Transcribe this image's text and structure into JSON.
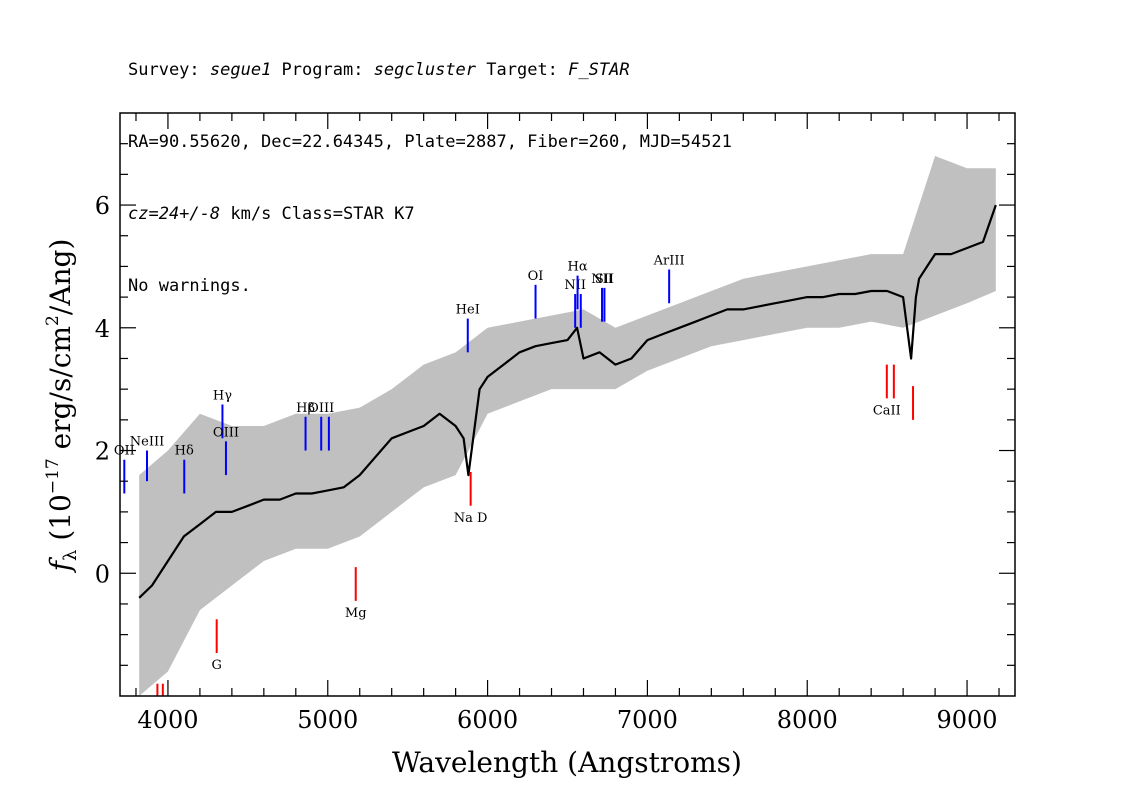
{
  "header": {
    "line1": {
      "survey_label": "Survey: ",
      "survey": "segue1",
      "program_label": " Program: ",
      "program": "segcluster",
      "target_label": " Target: ",
      "target": "F_STAR"
    },
    "line2": "RA=90.55620, Dec=22.64345, Plate=2887, Fiber=260, MJD=54521",
    "line3": {
      "cz": "cz=24+/-8",
      "rest": " km/s Class=STAR K7"
    },
    "line4": "No warnings."
  },
  "chart_data": {
    "type": "line",
    "title": "",
    "xlabel": "Wavelength (Angstroms)",
    "ylabel": "f_λ (10^-17 erg/s/cm^2/Ang)",
    "xlim": [
      3700,
      9300
    ],
    "ylim": [
      -2.0,
      7.5
    ],
    "x_ticks": [
      4000,
      5000,
      6000,
      7000,
      8000,
      9000
    ],
    "y_ticks": [
      0,
      2,
      4,
      6
    ],
    "grid": false,
    "series": [
      {
        "role": "flux",
        "color": "#000000",
        "x": [
          3820,
          3900,
          4000,
          4100,
          4200,
          4300,
          4400,
          4500,
          4600,
          4700,
          4800,
          4900,
          5000,
          5100,
          5200,
          5300,
          5400,
          5500,
          5600,
          5700,
          5800,
          5850,
          5880,
          5900,
          5950,
          6000,
          6100,
          6200,
          6300,
          6400,
          6500,
          6560,
          6600,
          6700,
          6800,
          6900,
          7000,
          7100,
          7200,
          7300,
          7400,
          7500,
          7600,
          7700,
          7800,
          7900,
          8000,
          8100,
          8200,
          8300,
          8400,
          8500,
          8600,
          8650,
          8680,
          8700,
          8750,
          8800,
          8900,
          9000,
          9100,
          9180
        ],
        "y": [
          -0.4,
          -0.2,
          0.2,
          0.6,
          0.8,
          1.0,
          1.0,
          1.1,
          1.2,
          1.2,
          1.3,
          1.3,
          1.35,
          1.4,
          1.6,
          1.9,
          2.2,
          2.3,
          2.4,
          2.6,
          2.4,
          2.2,
          1.6,
          2.0,
          3.0,
          3.2,
          3.4,
          3.6,
          3.7,
          3.75,
          3.8,
          4.0,
          3.5,
          3.6,
          3.4,
          3.5,
          3.8,
          3.9,
          4.0,
          4.1,
          4.2,
          4.3,
          4.3,
          4.35,
          4.4,
          4.45,
          4.5,
          4.5,
          4.55,
          4.55,
          4.6,
          4.6,
          4.5,
          3.5,
          4.5,
          4.8,
          5.0,
          5.2,
          5.2,
          5.3,
          5.4,
          6.0
        ]
      },
      {
        "role": "noise-envelope",
        "color": "#c0c0c0",
        "x": [
          3820,
          4000,
          4200,
          4400,
          4600,
          4800,
          5000,
          5200,
          5400,
          5600,
          5800,
          6000,
          6200,
          6400,
          6600,
          6800,
          7000,
          7200,
          7400,
          7600,
          7800,
          8000,
          8200,
          8400,
          8600,
          8800,
          9000,
          9180
        ],
        "upper": [
          1.6,
          2.0,
          2.6,
          2.4,
          2.4,
          2.6,
          2.6,
          2.7,
          3.0,
          3.4,
          3.6,
          4.0,
          4.1,
          4.2,
          4.3,
          4.0,
          4.2,
          4.4,
          4.6,
          4.8,
          4.9,
          5.0,
          5.1,
          5.2,
          5.2,
          6.8,
          6.6,
          6.6
        ],
        "lower": [
          -2.0,
          -1.6,
          -0.6,
          -0.2,
          0.2,
          0.4,
          0.4,
          0.6,
          1.0,
          1.4,
          1.6,
          2.6,
          2.8,
          3.0,
          3.0,
          3.0,
          3.3,
          3.5,
          3.7,
          3.8,
          3.9,
          4.0,
          4.0,
          4.1,
          4.0,
          4.2,
          4.4,
          4.6
        ]
      }
    ],
    "line_markers": [
      {
        "label": "OII",
        "x": 3727,
        "y1": 1.3,
        "y2": 1.85,
        "color": "#0000ff"
      },
      {
        "label": "NeIII",
        "x": 3869,
        "y1": 1.5,
        "y2": 2.0,
        "color": "#0000ff"
      },
      {
        "label": "Hδ",
        "x": 4102,
        "y1": 1.3,
        "y2": 1.85,
        "color": "#0000ff"
      },
      {
        "label": "Hγ",
        "x": 4341,
        "y1": 2.2,
        "y2": 2.75,
        "color": "#0000ff"
      },
      {
        "label": "OIII",
        "x": 4363,
        "y1": 1.6,
        "y2": 2.15,
        "color": "#0000ff"
      },
      {
        "label": "Hβ",
        "x": 4861,
        "y1": 2.0,
        "y2": 2.55,
        "color": "#0000ff"
      },
      {
        "label": "OIII",
        "x": 4959,
        "y1": 2.0,
        "y2": 2.55,
        "color": "#0000ff"
      },
      {
        "label": "",
        "x": 5007,
        "y1": 2.0,
        "y2": 2.55,
        "color": "#0000ff"
      },
      {
        "label": "HeI",
        "x": 5876,
        "y1": 3.6,
        "y2": 4.15,
        "color": "#0000ff"
      },
      {
        "label": "OI",
        "x": 6300,
        "y1": 4.15,
        "y2": 4.7,
        "color": "#0000ff"
      },
      {
        "label": "NII",
        "x": 6548,
        "y1": 4.0,
        "y2": 4.55,
        "color": "#0000ff"
      },
      {
        "label": "Hα",
        "x": 6563,
        "y1": 4.3,
        "y2": 4.85,
        "color": "#0000ff"
      },
      {
        "label": "",
        "x": 6583,
        "y1": 4.0,
        "y2": 4.55,
        "color": "#0000ff"
      },
      {
        "label": "NII",
        "x": 6716,
        "y1": 4.1,
        "y2": 4.65,
        "color": "#0000ff"
      },
      {
        "label": "SII",
        "x": 6731,
        "y1": 4.1,
        "y2": 4.65,
        "color": "#0000ff"
      },
      {
        "label": "ArIII",
        "x": 7136,
        "y1": 4.4,
        "y2": 4.95,
        "color": "#0000ff"
      },
      {
        "label": "G",
        "x": 4305,
        "y1": -1.3,
        "y2": -0.75,
        "color": "#ff0000"
      },
      {
        "label": "Mg",
        "x": 5175,
        "y1": -0.45,
        "y2": 0.1,
        "color": "#ff0000"
      },
      {
        "label": "Na D",
        "x": 5894,
        "y1": 1.1,
        "y2": 1.65,
        "color": "#ff0000"
      },
      {
        "label": "CaII",
        "x": 8498,
        "y1": 2.85,
        "y2": 3.4,
        "color": "#ff0000"
      },
      {
        "label": "",
        "x": 8542,
        "y1": 2.85,
        "y2": 3.4,
        "color": "#ff0000"
      },
      {
        "label": "",
        "x": 8662,
        "y1": 2.5,
        "y2": 3.05,
        "color": "#ff0000"
      },
      {
        "label": "",
        "x": 3934,
        "y1": -2.0,
        "y2": -1.8,
        "color": "#ff0000"
      },
      {
        "label": "",
        "x": 3968,
        "y1": -2.0,
        "y2": -1.8,
        "color": "#ff0000"
      }
    ]
  }
}
